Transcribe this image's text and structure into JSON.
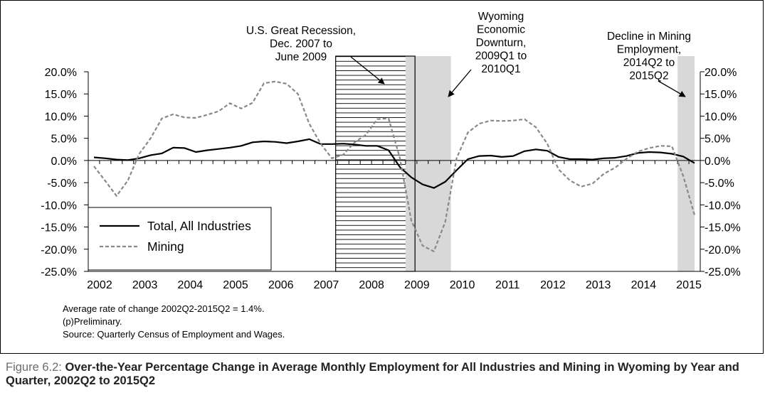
{
  "chart_data": {
    "type": "line",
    "title": "Over-the-Year Percentage Change in Average Monthly Employment for All Industries and Mining in Wyoming by Year and Quarter, 2002Q2 to 2015Q2",
    "figure_label": "Figure 6.2:",
    "x_tick_labels": [
      "2002",
      "2003",
      "2004",
      "2005",
      "2006",
      "2007",
      "2008",
      "2009",
      "2010",
      "2011",
      "2012",
      "2013",
      "2014",
      "2015"
    ],
    "y_tick_labels": [
      "20.0%",
      "15.0%",
      "10.0%",
      "5.0%",
      "0.0%",
      "-5.0%",
      "-10.0%",
      "-15.0%",
      "-20.0%",
      "-25.0%"
    ],
    "y_ticks": [
      20,
      15,
      10,
      5,
      0,
      -5,
      -10,
      -15,
      -20,
      -25
    ],
    "ylim": [
      -25,
      20
    ],
    "xlim": [
      2001.875,
      2015.375
    ],
    "legend_position": "bottom-left",
    "series": [
      {
        "name": "Total, All Industries",
        "style": "solid",
        "color": "#000000",
        "points": [
          [
            2002.0,
            0.7
          ],
          [
            2002.25,
            0.5
          ],
          [
            2002.5,
            0.2
          ],
          [
            2002.75,
            0.1
          ],
          [
            2003.0,
            0.5
          ],
          [
            2003.25,
            1.2
          ],
          [
            2003.5,
            1.6
          ],
          [
            2003.75,
            2.9
          ],
          [
            2004.0,
            2.8
          ],
          [
            2004.25,
            1.9
          ],
          [
            2004.5,
            2.3
          ],
          [
            2004.75,
            2.6
          ],
          [
            2005.0,
            2.9
          ],
          [
            2005.25,
            3.3
          ],
          [
            2005.5,
            4.1
          ],
          [
            2005.75,
            4.3
          ],
          [
            2006.0,
            4.2
          ],
          [
            2006.25,
            3.9
          ],
          [
            2006.5,
            4.3
          ],
          [
            2006.75,
            4.8
          ],
          [
            2007.0,
            3.7
          ],
          [
            2007.25,
            3.7
          ],
          [
            2007.5,
            3.8
          ],
          [
            2007.75,
            3.6
          ],
          [
            2008.0,
            3.3
          ],
          [
            2008.25,
            3.3
          ],
          [
            2008.5,
            2.3
          ],
          [
            2008.75,
            -1.5
          ],
          [
            2009.0,
            -3.8
          ],
          [
            2009.25,
            -5.4
          ],
          [
            2009.5,
            -6.2
          ],
          [
            2009.75,
            -4.8
          ],
          [
            2010.0,
            -2.2
          ],
          [
            2010.25,
            0.3
          ],
          [
            2010.5,
            1.0
          ],
          [
            2010.75,
            1.1
          ],
          [
            2011.0,
            0.8
          ],
          [
            2011.25,
            1.0
          ],
          [
            2011.5,
            2.1
          ],
          [
            2011.75,
            2.5
          ],
          [
            2012.0,
            2.2
          ],
          [
            2012.25,
            0.8
          ],
          [
            2012.5,
            0.3
          ],
          [
            2012.75,
            0.3
          ],
          [
            2013.0,
            0.2
          ],
          [
            2013.25,
            0.5
          ],
          [
            2013.5,
            0.6
          ],
          [
            2013.75,
            1.0
          ],
          [
            2014.0,
            1.7
          ],
          [
            2014.25,
            1.9
          ],
          [
            2014.5,
            1.8
          ],
          [
            2014.75,
            1.5
          ],
          [
            2015.0,
            0.9
          ],
          [
            2015.25,
            -0.6
          ]
        ]
      },
      {
        "name": "Mining",
        "style": "dashed",
        "color": "#888888",
        "points": [
          [
            2002.0,
            -1.3
          ],
          [
            2002.25,
            -4.6
          ],
          [
            2002.5,
            -8.0
          ],
          [
            2002.75,
            -4.5
          ],
          [
            2003.0,
            1.5
          ],
          [
            2003.25,
            5.0
          ],
          [
            2003.5,
            9.5
          ],
          [
            2003.75,
            10.4
          ],
          [
            2004.0,
            9.7
          ],
          [
            2004.25,
            9.6
          ],
          [
            2004.5,
            10.3
          ],
          [
            2004.75,
            11.1
          ],
          [
            2005.0,
            12.9
          ],
          [
            2005.25,
            11.7
          ],
          [
            2005.5,
            13.0
          ],
          [
            2005.75,
            17.4
          ],
          [
            2006.0,
            17.8
          ],
          [
            2006.25,
            17.3
          ],
          [
            2006.5,
            15.0
          ],
          [
            2006.75,
            8.3
          ],
          [
            2007.0,
            3.8
          ],
          [
            2007.25,
            0.5
          ],
          [
            2007.5,
            1.3
          ],
          [
            2007.75,
            4.1
          ],
          [
            2008.0,
            5.8
          ],
          [
            2008.25,
            9.3
          ],
          [
            2008.5,
            9.5
          ],
          [
            2008.75,
            0.5
          ],
          [
            2009.0,
            -13.5
          ],
          [
            2009.25,
            -19.2
          ],
          [
            2009.5,
            -20.5
          ],
          [
            2009.75,
            -13.8
          ],
          [
            2010.0,
            0.5
          ],
          [
            2010.25,
            6.3
          ],
          [
            2010.5,
            8.3
          ],
          [
            2010.75,
            9.0
          ],
          [
            2011.0,
            8.9
          ],
          [
            2011.25,
            9.0
          ],
          [
            2011.5,
            9.3
          ],
          [
            2011.75,
            7.5
          ],
          [
            2012.0,
            3.8
          ],
          [
            2012.25,
            -2.0
          ],
          [
            2012.5,
            -4.5
          ],
          [
            2012.75,
            -5.9
          ],
          [
            2013.0,
            -5.2
          ],
          [
            2013.25,
            -3.0
          ],
          [
            2013.5,
            -1.6
          ],
          [
            2013.75,
            0.4
          ],
          [
            2014.0,
            2.0
          ],
          [
            2014.25,
            2.8
          ],
          [
            2014.5,
            3.3
          ],
          [
            2014.75,
            3.2
          ],
          [
            2015.0,
            -3.5
          ],
          [
            2015.25,
            -12.3
          ]
        ]
      }
    ],
    "shaded_regions": [
      {
        "name": "recession",
        "x0": 2007.333,
        "x1": 2009.083,
        "fill": "#ffffff",
        "pattern": "horizontal-lines"
      },
      {
        "name": "downturn",
        "x0": 2008.875,
        "x1": 2009.875,
        "fill": "#d8d8d8"
      },
      {
        "name": "mining-decline",
        "x0": 2014.875,
        "x1": 2015.25,
        "fill": "#d8d8d8"
      }
    ],
    "annotations": [
      {
        "name": "recession-annotation",
        "lines": [
          "U.S. Great Recession,",
          "Dec. 2007 to",
          "June 2009"
        ],
        "ax": 395,
        "ay": 44,
        "tx": 2008.0,
        "ty": 17.5
      },
      {
        "name": "downturn-annotation",
        "lines": [
          "Wyoming",
          "Economic",
          "Downturn,",
          "2009Q1 to",
          "2010Q1"
        ],
        "ax": 655,
        "ay": 77,
        "tx": 2009.45,
        "ty": 14.5
      },
      {
        "name": "mining-decline-annotation",
        "lines": [
          "Decline in Mining",
          "Employment,",
          "2014Q2 to",
          "2015Q2"
        ],
        "ax": 922,
        "ay": 105,
        "tx": 2015.0,
        "ty": 14.0
      }
    ]
  },
  "notes": {
    "line1": "Average rate of change 2002Q2-2015Q2 = 1.4%.",
    "line2": "(p)Preliminary.",
    "line3": "Source: Quarterly Census of Employment and Wages."
  }
}
